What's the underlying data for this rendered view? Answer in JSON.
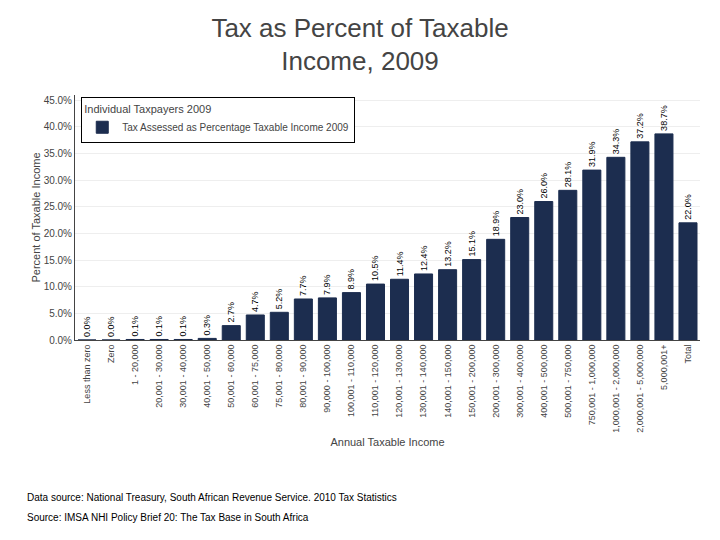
{
  "chart_data": {
    "type": "bar",
    "title": "Tax as Percent of Taxable\nIncome, 2009",
    "xlabel": "Annual Taxable Income",
    "ylabel": "Percent of Taxable Income",
    "legend_title": "Individual Taxpayers 2009",
    "legend": "upper left",
    "grid": true,
    "data_labels": true,
    "categories": [
      "Less than zero",
      "Zero",
      "1 - 20,000",
      "20,001 - 30,000",
      "30,001 - 40,000",
      "40,001 - 50,000",
      "50,001 - 60,000",
      "60,001 - 75,000",
      "75,001 - 80,000",
      "80,001 - 90,000",
      "90,000 - 100,000",
      "100,001 - 110,000",
      "110,001 - 120,000",
      "120,001 - 130,000",
      "130,001 - 140,000",
      "140,001 - 150,000",
      "150,001 - 200,000",
      "200,001 - 300,000",
      "300,001 - 400,000",
      "400,001 - 500,000",
      "500,001 - 750,000",
      "750,001 - 1,000,000",
      "1,000,001 - 2,000,000",
      "2,000,001 - 5,000,000",
      "5,000,001+",
      "Total"
    ],
    "series": [
      {
        "name": "Tax Assessed as Percentage Taxable Income 2009",
        "color": "#1C2D4F",
        "values": [
          0.0,
          0.0,
          0.1,
          0.1,
          0.1,
          0.3,
          2.7,
          4.7,
          5.2,
          7.7,
          7.9,
          8.9,
          10.5,
          11.4,
          12.4,
          13.2,
          15.1,
          18.9,
          23.0,
          26.0,
          28.1,
          31.9,
          34.3,
          37.2,
          38.7,
          22.0
        ],
        "value_labels": [
          "0.0%",
          "0.0%",
          "0.1%",
          "0.1%",
          "0.1%",
          "0.3%",
          "2.7%",
          "4.7%",
          "5.2%",
          "7.7%",
          "7.9%",
          "8.9%",
          "10.5%",
          "11.4%",
          "12.4%",
          "13.2%",
          "15.1%",
          "18.9%",
          "23.0%",
          "26.0%",
          "28.1%",
          "31.9%",
          "34.3%",
          "37.2%",
          "38.7%",
          "22.0%"
        ]
      }
    ],
    "ylim": [
      0,
      46
    ],
    "yticks": [
      {
        "value": 0,
        "label": "0.0%"
      },
      {
        "value": 5,
        "label": "5.0%"
      },
      {
        "value": 10,
        "label": "10.0%"
      },
      {
        "value": 15,
        "label": "15.0%"
      },
      {
        "value": 20,
        "label": "20.0%"
      },
      {
        "value": 25,
        "label": "25.0%"
      },
      {
        "value": 30,
        "label": "30.0%"
      },
      {
        "value": 35,
        "label": "35.0%"
      },
      {
        "value": 40,
        "label": "40.0%"
      },
      {
        "value": 45,
        "label": "45.0%"
      }
    ],
    "annotations": [
      "Data source: National Treasury, South African Revenue Service. 2010 Tax Statistics",
      "Source: IMSA NHI Policy Brief 20: The Tax Base in South Africa"
    ]
  }
}
